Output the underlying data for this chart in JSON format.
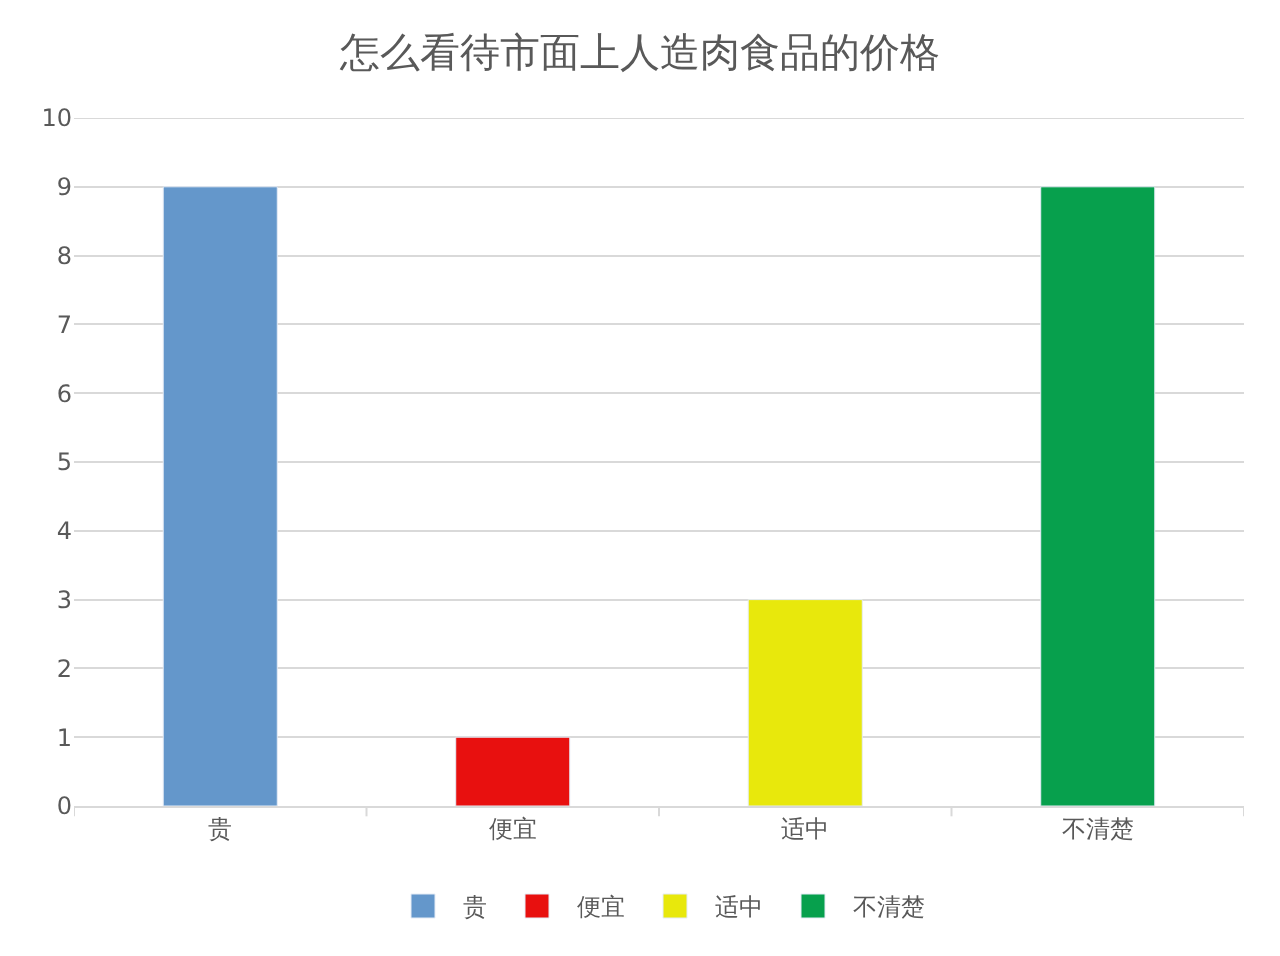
{
  "chart_data": {
    "type": "bar",
    "title": "怎么看待市面上人造肉食品的价格",
    "categories": [
      "贵",
      "便宜",
      "适中",
      "不清楚"
    ],
    "series": [
      {
        "name": "贵",
        "color": "#6497cb",
        "values": [
          9,
          null,
          null,
          null
        ]
      },
      {
        "name": "便宜",
        "color": "#e8100f",
        "values": [
          null,
          1,
          null,
          null
        ]
      },
      {
        "name": "适中",
        "color": "#e8e80c",
        "values": [
          null,
          null,
          3,
          null
        ]
      },
      {
        "name": "不清楚",
        "color": "#07a04d",
        "values": [
          null,
          null,
          null,
          9
        ]
      }
    ],
    "ylim": [
      0,
      10
    ],
    "yticks": [
      0,
      1,
      2,
      3,
      4,
      5,
      6,
      7,
      8,
      9,
      10
    ],
    "grid": "y",
    "legend": "bottom"
  }
}
